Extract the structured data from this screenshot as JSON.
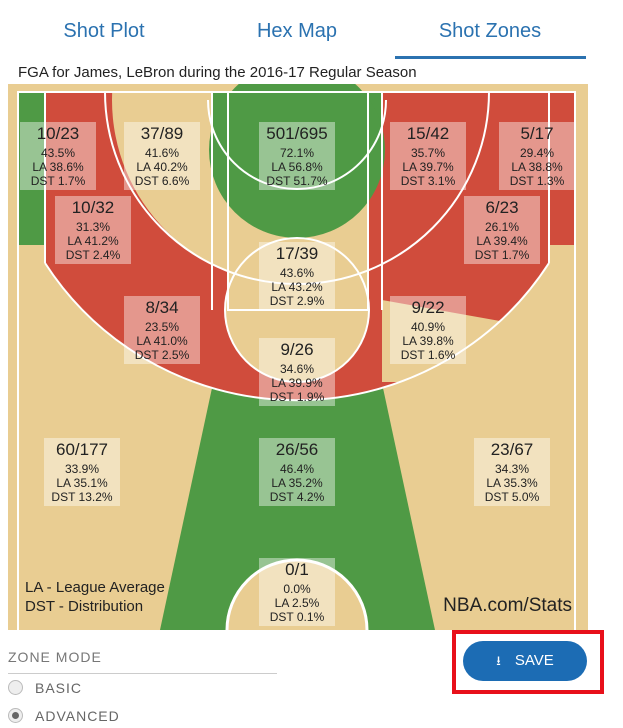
{
  "tabs": [
    "Shot Plot",
    "Hex Map",
    "Shot Zones"
  ],
  "title": "FGA for James, LeBron during the 2016-17 Regular Season",
  "zones": [
    {
      "fga": "10/23",
      "pct": "43.5%",
      "la": "LA 38.6%",
      "dst": "DST 1.7%"
    },
    {
      "fga": "37/89",
      "pct": "41.6%",
      "la": "LA 40.2%",
      "dst": "DST 6.6%"
    },
    {
      "fga": "501/695",
      "pct": "72.1%",
      "la": "LA 56.8%",
      "dst": "DST 51.7%"
    },
    {
      "fga": "15/42",
      "pct": "35.7%",
      "la": "LA 39.7%",
      "dst": "DST 3.1%"
    },
    {
      "fga": "5/17",
      "pct": "29.4%",
      "la": "LA 38.8%",
      "dst": "DST 1.3%"
    },
    {
      "fga": "10/32",
      "pct": "31.3%",
      "la": "LA 41.2%",
      "dst": "DST 2.4%"
    },
    {
      "fga": "6/23",
      "pct": "26.1%",
      "la": "LA 39.4%",
      "dst": "DST 1.7%"
    },
    {
      "fga": "17/39",
      "pct": "43.6%",
      "la": "LA 43.2%",
      "dst": "DST 2.9%"
    },
    {
      "fga": "8/34",
      "pct": "23.5%",
      "la": "LA 41.0%",
      "dst": "DST 2.5%"
    },
    {
      "fga": "9/22",
      "pct": "40.9%",
      "la": "LA 39.8%",
      "dst": "DST 1.6%"
    },
    {
      "fga": "9/26",
      "pct": "34.6%",
      "la": "LA 39.9%",
      "dst": "DST 1.9%"
    },
    {
      "fga": "60/177",
      "pct": "33.9%",
      "la": "LA 35.1%",
      "dst": "DST 13.2%"
    },
    {
      "fga": "26/56",
      "pct": "46.4%",
      "la": "LA 35.2%",
      "dst": "DST 4.2%"
    },
    {
      "fga": "23/67",
      "pct": "34.3%",
      "la": "LA 35.3%",
      "dst": "DST 5.0%"
    },
    {
      "fga": "0/1",
      "pct": "0.0%",
      "la": "LA 2.5%",
      "dst": "DST 0.1%"
    }
  ],
  "legend": [
    "LA - League Average",
    "DST - Distribution"
  ],
  "watermark": "NBA.com/Stats",
  "zone_mode": {
    "label": "ZONE MODE",
    "options": [
      "BASIC",
      "ADVANCED"
    ]
  },
  "save": "SAVE"
}
